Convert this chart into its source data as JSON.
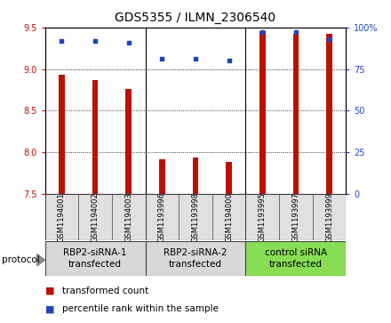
{
  "title": "GDS5355 / ILMN_2306540",
  "samples": [
    "GSM1194001",
    "GSM1194002",
    "GSM1194003",
    "GSM1193996",
    "GSM1193998",
    "GSM1194000",
    "GSM1193995",
    "GSM1193997",
    "GSM1193999"
  ],
  "bar_values": [
    8.93,
    8.87,
    8.76,
    7.92,
    7.94,
    7.88,
    9.46,
    9.42,
    9.42
  ],
  "scatter_values": [
    92,
    92,
    91,
    81,
    81,
    80,
    97,
    97,
    93
  ],
  "ylim_left": [
    7.5,
    9.5
  ],
  "ylim_right": [
    0,
    100
  ],
  "yticks_left": [
    7.5,
    8.0,
    8.5,
    9.0,
    9.5
  ],
  "yticks_right": [
    0,
    25,
    50,
    75,
    100
  ],
  "bar_color": "#bb1100",
  "scatter_color": "#2244bb",
  "bg_color": "#e0e0e0",
  "group_green": "#88dd55",
  "groups": [
    {
      "label": "RBP2-siRNA-1\ntransfected",
      "start": 0,
      "end": 3,
      "color": "#d8d8d8"
    },
    {
      "label": "RBP2-siRNA-2\ntransfected",
      "start": 3,
      "end": 6,
      "color": "#d8d8d8"
    },
    {
      "label": "control siRNA\ntransfected",
      "start": 6,
      "end": 9,
      "color": "#88dd55"
    }
  ],
  "protocol_label": "protocol",
  "legend_bar_label": "transformed count",
  "legend_scatter_label": "percentile rank within the sample",
  "title_fontsize": 10,
  "tick_fontsize": 7,
  "sample_fontsize": 6,
  "group_fontsize": 7.5
}
